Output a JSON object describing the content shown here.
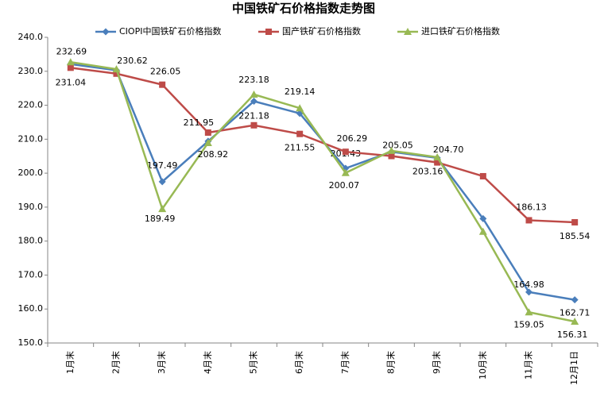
{
  "chart_data": {
    "type": "line",
    "title": "中国铁矿石价格指数走势图",
    "categories": [
      "1月末",
      "2月末",
      "3月末",
      "4月末",
      "5月末",
      "6月末",
      "7月末",
      "8月末",
      "9月末",
      "10月末",
      "11月末",
      "12月1日"
    ],
    "series": [
      {
        "name": "CIOPI中国铁矿石价格指数",
        "color": "#4a7ebb",
        "marker": "diamond",
        "values": [
          232.1,
          230.3,
          197.49,
          209.4,
          221.18,
          217.6,
          201.43,
          206.3,
          204.5,
          186.6,
          164.98,
          162.71
        ],
        "value_labels": [
          null,
          null,
          "197.49",
          null,
          "221.18",
          null,
          "201.43",
          null,
          null,
          null,
          "164.98",
          "162.71"
        ]
      },
      {
        "name": "国产铁矿石价格指数",
        "color": "#be4b48",
        "marker": "square",
        "values": [
          231.04,
          229.3,
          226.05,
          211.95,
          214.1,
          211.55,
          206.29,
          205.05,
          203.16,
          199.1,
          186.13,
          185.54
        ],
        "value_labels": [
          "231.04",
          null,
          "226.05",
          "211.95",
          null,
          "211.55",
          "206.29",
          "205.05",
          "203.16",
          null,
          "186.13",
          "185.54"
        ]
      },
      {
        "name": "进口铁矿石价格指数",
        "color": "#98b954",
        "marker": "triangle",
        "values": [
          232.69,
          230.62,
          189.49,
          208.92,
          223.18,
          219.14,
          200.07,
          206.6,
          204.7,
          182.8,
          159.05,
          156.31
        ],
        "value_labels": [
          "232.69",
          "230.62",
          "189.49",
          "208.92",
          "223.18",
          "219.14",
          "200.07",
          null,
          "204.70",
          null,
          "159.05",
          "156.31"
        ]
      }
    ],
    "ylim": [
      150,
      240
    ],
    "yticks": [
      {
        "value": 150,
        "label": "150.0"
      },
      {
        "value": 160,
        "label": "160.0"
      },
      {
        "value": 170,
        "label": "170.0"
      },
      {
        "value": 180,
        "label": "180.0"
      },
      {
        "value": 190,
        "label": "190.0"
      },
      {
        "value": 200,
        "label": "200.0"
      },
      {
        "value": 210,
        "label": "210.0"
      },
      {
        "value": 220,
        "label": "220.0"
      },
      {
        "value": 230,
        "label": "230.0"
      },
      {
        "value": 240,
        "label": "240.0"
      }
    ],
    "legend": "top"
  }
}
